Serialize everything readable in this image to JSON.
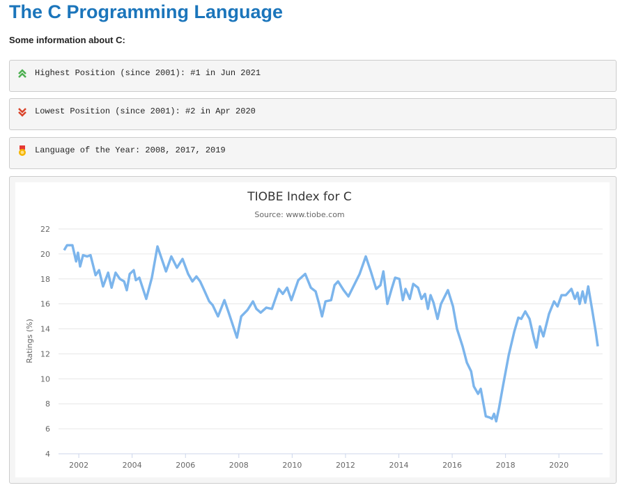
{
  "header": {
    "title": "The C Programming Language",
    "intro": "Some information about C:"
  },
  "info": [
    {
      "text": "Highest Position (since 2001): #1 in Jun 2021"
    },
    {
      "text": "Lowest Position (since 2001): #2 in Apr 2020"
    },
    {
      "text": "Language of the Year: 2008, 2017, 2019"
    }
  ],
  "chart_data": {
    "type": "line",
    "title": "TIOBE Index for C",
    "subtitle": "Source: www.tiobe.com",
    "y_label": "Ratings (%)",
    "x": [
      2001.45,
      2001.56,
      2001.76,
      2001.9,
      2001.97,
      2002.05,
      2002.16,
      2002.31,
      2002.44,
      2002.63,
      2002.76,
      2002.91,
      2003.1,
      2003.23,
      2003.38,
      2003.54,
      2003.7,
      2003.8,
      2003.91,
      2004.06,
      2004.14,
      2004.27,
      2004.53,
      2004.74,
      2004.95,
      2005.11,
      2005.27,
      2005.47,
      2005.68,
      2005.89,
      2006.1,
      2006.26,
      2006.41,
      2006.55,
      2006.68,
      2006.89,
      2007.02,
      2007.22,
      2007.46,
      2007.62,
      2007.93,
      2008.09,
      2008.32,
      2008.53,
      2008.66,
      2008.82,
      2009.03,
      2009.24,
      2009.5,
      2009.65,
      2009.81,
      2009.97,
      2010.23,
      2010.49,
      2010.7,
      2010.88,
      2011.01,
      2011.12,
      2011.25,
      2011.46,
      2011.59,
      2011.72,
      2011.93,
      2012.11,
      2012.32,
      2012.53,
      2012.76,
      2012.95,
      2013.15,
      2013.31,
      2013.42,
      2013.57,
      2013.73,
      2013.86,
      2014.02,
      2014.15,
      2014.25,
      2014.41,
      2014.54,
      2014.72,
      2014.85,
      2014.98,
      2015.09,
      2015.19,
      2015.3,
      2015.45,
      2015.58,
      2015.84,
      2016.03,
      2016.18,
      2016.39,
      2016.55,
      2016.71,
      2016.81,
      2016.97,
      2017.07,
      2017.26,
      2017.41,
      2017.49,
      2017.57,
      2017.65,
      2017.75,
      2017.91,
      2018.12,
      2018.33,
      2018.48,
      2018.59,
      2018.74,
      2018.9,
      2019.06,
      2019.16,
      2019.29,
      2019.42,
      2019.63,
      2019.82,
      2019.95,
      2020.1,
      2020.26,
      2020.47,
      2020.6,
      2020.7,
      2020.78,
      2020.89,
      2020.99,
      2021.1,
      2021.25,
      2021.38,
      2021.46
    ],
    "series": [
      {
        "name": "C",
        "color": "#7cb5ec",
        "values": [
          20.3,
          20.7,
          20.7,
          19.4,
          20.1,
          19.0,
          19.9,
          19.8,
          19.9,
          18.3,
          18.7,
          17.4,
          18.5,
          17.3,
          18.5,
          18.0,
          17.8,
          17.1,
          18.4,
          18.7,
          17.9,
          18.1,
          16.4,
          18.1,
          20.6,
          19.6,
          18.6,
          19.8,
          18.9,
          19.6,
          18.4,
          17.8,
          18.2,
          17.8,
          17.2,
          16.2,
          15.9,
          15.0,
          16.3,
          15.3,
          13.3,
          15.0,
          15.5,
          16.2,
          15.6,
          15.3,
          15.7,
          15.6,
          17.2,
          16.8,
          17.3,
          16.3,
          17.9,
          18.4,
          17.3,
          17.0,
          16.0,
          15.0,
          16.2,
          16.3,
          17.5,
          17.8,
          17.1,
          16.6,
          17.5,
          18.4,
          19.8,
          18.6,
          17.2,
          17.5,
          18.6,
          16.0,
          17.2,
          18.1,
          18.0,
          16.3,
          17.2,
          16.4,
          17.6,
          17.3,
          16.4,
          16.8,
          15.6,
          16.7,
          16.1,
          14.8,
          16.0,
          17.1,
          15.8,
          14.0,
          12.6,
          11.3,
          10.6,
          9.4,
          8.8,
          9.2,
          7.0,
          6.9,
          6.8,
          7.2,
          6.6,
          7.6,
          9.5,
          11.9,
          13.8,
          14.9,
          14.8,
          15.4,
          14.8,
          13.3,
          12.5,
          14.2,
          13.4,
          15.2,
          16.2,
          15.8,
          16.7,
          16.7,
          17.2,
          16.4,
          16.9,
          16.0,
          17.0,
          16.1,
          17.4,
          15.5,
          13.8,
          12.6
        ]
      }
    ],
    "xlim": [
      2001.24,
      2021.64
    ],
    "xticks": [
      2002,
      2004,
      2006,
      2008,
      2010,
      2012,
      2014,
      2016,
      2018,
      2020
    ],
    "ylim": [
      4,
      22
    ],
    "yticks": [
      4,
      6,
      8,
      10,
      12,
      14,
      16,
      18,
      20,
      22
    ],
    "grid": true
  }
}
